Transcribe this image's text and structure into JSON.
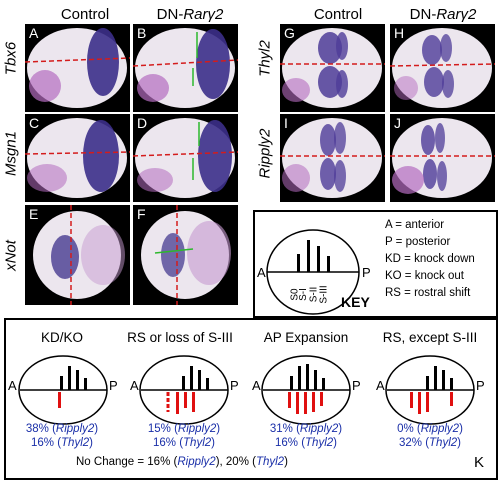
{
  "column_headers": {
    "left_control": "Control",
    "left_dn_prefix": "DN-",
    "left_dn_gene": "Rarγ2",
    "right_control": "Control",
    "right_dn_prefix": "DN-",
    "right_dn_gene": "Rarγ2"
  },
  "row_labels": {
    "tbx6": "Tbx6",
    "msgn1": "Msgn1",
    "xnot": "xNot",
    "thyl2": "Thyl2",
    "ripply2": "Ripply2"
  },
  "panels": {
    "A": "A",
    "B": "B",
    "C": "C",
    "D": "D",
    "E": "E",
    "F": "F",
    "G": "G",
    "H": "H",
    "I": "I",
    "J": "J"
  },
  "key": {
    "axis_a": "A",
    "axis_p": "P",
    "somite_labels": [
      "S0",
      "S-I",
      "S-II",
      "S-III"
    ],
    "title": "KEY",
    "legend": [
      "A = anterior",
      "P = posterior",
      "KD = knock down",
      "KO = knock out",
      "RS = rostral shift"
    ]
  },
  "categories": [
    {
      "title": "KD/KO",
      "ripply2": "38% (",
      "ripply2_gene": "Ripply2",
      "ripply2_end": ")",
      "thyl2": "16% (",
      "thyl2_gene": "Thyl2",
      "thyl2_end": ")"
    },
    {
      "title": "RS or loss of S-III",
      "ripply2": "15% (",
      "ripply2_gene": "Ripply2",
      "ripply2_end": ")",
      "thyl2": "16% (",
      "thyl2_gene": "Thyl2",
      "thyl2_end": ")"
    },
    {
      "title": "AP Expansion",
      "ripply2": "31% (",
      "ripply2_gene": "Ripply2",
      "ripply2_end": ")",
      "thyl2": "16% (",
      "thyl2_gene": "Thyl2",
      "thyl2_end": ")"
    },
    {
      "title": "RS, except S-III",
      "ripply2": "0% (",
      "ripply2_gene": "Ripply2",
      "ripply2_end": ")",
      "thyl2": "32% (",
      "thyl2_gene": "Thyl2",
      "thyl2_end": ")"
    }
  ],
  "no_change": {
    "prefix": "No Change = 16% (",
    "gene1": "Ripply2",
    "mid": "), 20% (",
    "gene2": "Thyl2",
    "suffix": ")"
  },
  "panel_k": "K",
  "colors": {
    "black_bar": "#000000",
    "red_bar": "#e01010",
    "pct_text": "#1a2fa8"
  }
}
